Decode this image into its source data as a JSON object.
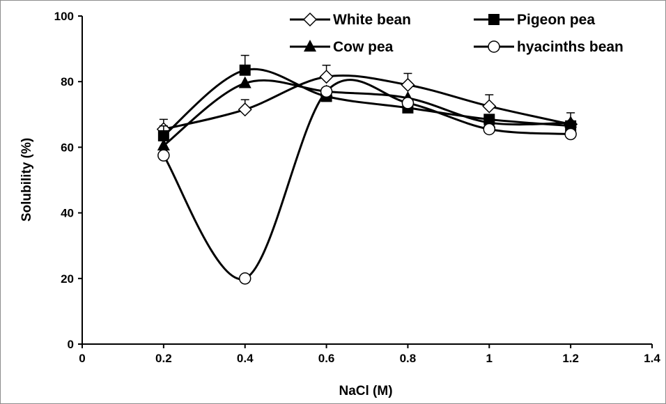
{
  "chart_data": {
    "type": "line",
    "title": "",
    "xlabel": "NaCl (M)",
    "ylabel": "Solubility (%)",
    "xlim": [
      0,
      1.4
    ],
    "ylim": [
      0,
      100
    ],
    "x_ticks": [
      "0",
      "0.2",
      "0.4",
      "0.6",
      "0.8",
      "1",
      "1.2",
      "1.4"
    ],
    "y_ticks": [
      "0",
      "20",
      "40",
      "60",
      "80",
      "100"
    ],
    "x": [
      0.2,
      0.4,
      0.6,
      0.8,
      1.0,
      1.2
    ],
    "grid": false,
    "legend_position": "top-right",
    "series": [
      {
        "name": "White bean",
        "marker": "diamond-open",
        "color": "#000000",
        "values": [
          65.5,
          71.5,
          81.5,
          79,
          72.5,
          67
        ],
        "errors": [
          3,
          3,
          3.5,
          3.5,
          3.5,
          3.5
        ]
      },
      {
        "name": "Pigeon pea",
        "marker": "square-filled",
        "color": "#000000",
        "values": [
          63.5,
          83.5,
          75.5,
          72,
          68.5,
          66.5
        ],
        "errors": [
          3,
          4.5,
          0,
          0,
          0,
          0
        ]
      },
      {
        "name": "Cow pea",
        "marker": "triangle-filled",
        "color": "#000000",
        "values": [
          60.5,
          79.5,
          77,
          75,
          67.5,
          67.5
        ],
        "errors": [
          0,
          0,
          0,
          0,
          0,
          0
        ]
      },
      {
        "name": "hyacinths bean",
        "marker": "circle-open",
        "color": "#000000",
        "values": [
          57.5,
          20,
          77,
          73.5,
          65.5,
          64
        ],
        "errors": [
          0,
          0,
          0,
          0,
          0,
          0
        ]
      }
    ]
  }
}
